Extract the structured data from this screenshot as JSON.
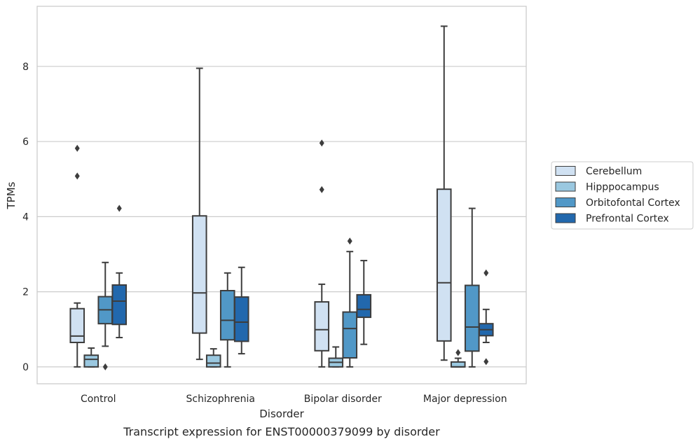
{
  "chart_data": {
    "type": "boxplot",
    "title": "",
    "caption": "Transcript expression for ENST00000379099 by disorder",
    "xlabel": "Disorder",
    "ylabel": "TPMs",
    "ylim": [
      -0.45,
      9.6
    ],
    "yticks": [
      0,
      2,
      4,
      6,
      8
    ],
    "grid": "horizontal",
    "legend_position": "right",
    "categories": [
      "Control",
      "Schizophrenia",
      "Bipolar disorder",
      "Major depression"
    ],
    "series": [
      {
        "name": "Cerebellum",
        "color": "#d0e1f2",
        "boxes": [
          {
            "whislo": 0.0,
            "q1": 0.65,
            "med": 0.82,
            "q3": 1.55,
            "whishi": 1.7,
            "fliers": [
              5.08,
              5.82
            ]
          },
          {
            "whislo": 0.2,
            "q1": 0.9,
            "med": 1.97,
            "q3": 4.02,
            "whishi": 7.95,
            "fliers": []
          },
          {
            "whislo": 0.0,
            "q1": 0.43,
            "med": 0.99,
            "q3": 1.73,
            "whishi": 2.2,
            "fliers": [
              4.72,
              5.96
            ]
          },
          {
            "whislo": 0.18,
            "q1": 0.69,
            "med": 2.24,
            "q3": 4.73,
            "whishi": 9.07,
            "fliers": []
          }
        ]
      },
      {
        "name": "Hipppocampus",
        "color": "#9ac8e0",
        "boxes": [
          {
            "whislo": 0.0,
            "q1": 0.0,
            "med": 0.2,
            "q3": 0.31,
            "whishi": 0.5,
            "fliers": []
          },
          {
            "whislo": 0.0,
            "q1": 0.0,
            "med": 0.1,
            "q3": 0.31,
            "whishi": 0.48,
            "fliers": []
          },
          {
            "whislo": 0.0,
            "q1": 0.0,
            "med": 0.12,
            "q3": 0.23,
            "whishi": 0.53,
            "fliers": []
          },
          {
            "whislo": 0.0,
            "q1": 0.0,
            "med": 0.0,
            "q3": 0.13,
            "whishi": 0.23,
            "fliers": [
              0.38
            ]
          }
        ]
      },
      {
        "name": "Orbitofontal Cortex",
        "color": "#5198c7",
        "boxes": [
          {
            "whislo": 0.55,
            "q1": 1.15,
            "med": 1.52,
            "q3": 1.87,
            "whishi": 2.78,
            "fliers": [
              0.0
            ]
          },
          {
            "whislo": 0.0,
            "q1": 0.72,
            "med": 1.24,
            "q3": 2.03,
            "whishi": 2.5,
            "fliers": []
          },
          {
            "whislo": 0.0,
            "q1": 0.24,
            "med": 1.02,
            "q3": 1.46,
            "whishi": 3.07,
            "fliers": [
              3.35
            ]
          },
          {
            "whislo": 0.0,
            "q1": 0.42,
            "med": 1.06,
            "q3": 2.17,
            "whishi": 4.22,
            "fliers": []
          }
        ]
      },
      {
        "name": "Prefrontal Cortex",
        "color": "#2268ad",
        "boxes": [
          {
            "whislo": 0.78,
            "q1": 1.13,
            "med": 1.75,
            "q3": 2.18,
            "whishi": 2.5,
            "fliers": [
              4.22
            ]
          },
          {
            "whislo": 0.35,
            "q1": 0.68,
            "med": 1.19,
            "q3": 1.86,
            "whishi": 2.65,
            "fliers": []
          },
          {
            "whislo": 0.6,
            "q1": 1.32,
            "med": 1.53,
            "q3": 1.92,
            "whishi": 2.83,
            "fliers": []
          },
          {
            "whislo": 0.65,
            "q1": 0.83,
            "med": 0.99,
            "q3": 1.15,
            "whishi": 1.53,
            "fliers": [
              0.14,
              2.5
            ]
          }
        ]
      }
    ]
  }
}
